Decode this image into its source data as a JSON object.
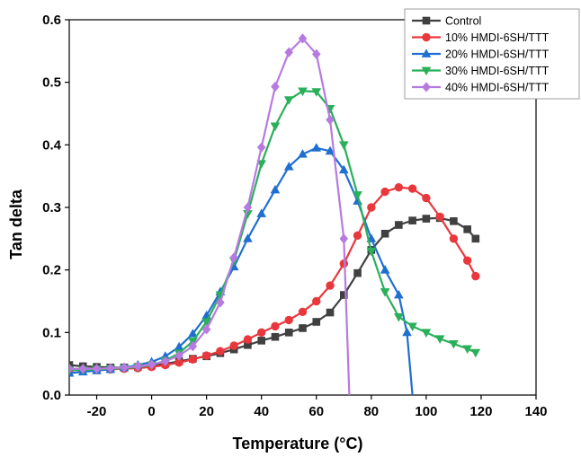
{
  "chart_data": {
    "type": "line",
    "xlabel": "Temperature (°C)",
    "ylabel": "Tan delta",
    "xlim": [
      -30,
      140
    ],
    "ylim": [
      0,
      0.6
    ],
    "xticks": [
      -20,
      0,
      20,
      40,
      60,
      80,
      100,
      120,
      140
    ],
    "yticks": [
      0.0,
      0.1,
      0.2,
      0.3,
      0.4,
      0.5,
      0.6
    ],
    "ytick_labels": [
      "0.0",
      "0.1",
      "0.2",
      "0.3",
      "0.4",
      "0.5",
      "0.6"
    ],
    "legend_position": "top-right",
    "grid": false,
    "series": [
      {
        "name": "Control",
        "color": "#404040",
        "marker": "square",
        "x": [
          -30,
          -25,
          -20,
          -15,
          -10,
          -5,
          0,
          5,
          10,
          15,
          20,
          25,
          30,
          35,
          40,
          45,
          50,
          55,
          60,
          65,
          70,
          75,
          80,
          85,
          90,
          95,
          100,
          105,
          110,
          115,
          118
        ],
        "y": [
          0.048,
          0.046,
          0.045,
          0.044,
          0.044,
          0.045,
          0.047,
          0.05,
          0.054,
          0.058,
          0.062,
          0.067,
          0.073,
          0.08,
          0.087,
          0.093,
          0.1,
          0.107,
          0.117,
          0.132,
          0.16,
          0.195,
          0.232,
          0.258,
          0.272,
          0.279,
          0.282,
          0.283,
          0.278,
          0.265,
          0.25
        ]
      },
      {
        "name": "10% HMDI-6SH/TTT",
        "color": "#e8383d",
        "marker": "circle",
        "x": [
          -30,
          -25,
          -20,
          -15,
          -10,
          -5,
          0,
          5,
          10,
          15,
          20,
          25,
          30,
          35,
          40,
          45,
          50,
          55,
          60,
          65,
          70,
          75,
          80,
          85,
          90,
          95,
          100,
          105,
          110,
          115,
          118
        ],
        "y": [
          0.04,
          0.04,
          0.04,
          0.041,
          0.042,
          0.043,
          0.045,
          0.048,
          0.052,
          0.057,
          0.063,
          0.07,
          0.079,
          0.089,
          0.1,
          0.11,
          0.12,
          0.133,
          0.15,
          0.175,
          0.21,
          0.255,
          0.3,
          0.325,
          0.332,
          0.33,
          0.315,
          0.285,
          0.25,
          0.215,
          0.19
        ]
      },
      {
        "name": "20% HMDI-6SH/TTT",
        "color": "#1f6fd1",
        "marker": "triangle-up",
        "x": [
          -30,
          -25,
          -20,
          -15,
          -10,
          -5,
          0,
          5,
          10,
          15,
          20,
          25,
          30,
          35,
          40,
          45,
          50,
          55,
          60,
          65,
          70,
          75,
          80,
          85,
          90,
          93,
          95
        ],
        "y": [
          0.035,
          0.037,
          0.039,
          0.041,
          0.044,
          0.048,
          0.053,
          0.062,
          0.077,
          0.098,
          0.127,
          0.165,
          0.205,
          0.25,
          0.29,
          0.328,
          0.365,
          0.385,
          0.395,
          0.39,
          0.36,
          0.31,
          0.25,
          0.2,
          0.16,
          0.1,
          0.0
        ]
      },
      {
        "name": "30% HMDI-6SH/TTT",
        "color": "#2aaf5a",
        "marker": "triangle-down",
        "x": [
          -30,
          -25,
          -20,
          -15,
          -10,
          -5,
          0,
          5,
          10,
          15,
          20,
          25,
          30,
          35,
          40,
          45,
          50,
          55,
          60,
          65,
          70,
          75,
          80,
          85,
          90,
          95,
          100,
          105,
          110,
          115,
          118
        ],
        "y": [
          0.04,
          0.04,
          0.041,
          0.042,
          0.043,
          0.045,
          0.048,
          0.055,
          0.067,
          0.086,
          0.117,
          0.16,
          0.215,
          0.29,
          0.37,
          0.43,
          0.472,
          0.486,
          0.485,
          0.458,
          0.4,
          0.32,
          0.23,
          0.165,
          0.125,
          0.11,
          0.1,
          0.09,
          0.082,
          0.074,
          0.068
        ]
      },
      {
        "name": "40% HMDI-6SH/TTT",
        "color": "#b77be0",
        "marker": "diamond",
        "x": [
          -30,
          -25,
          -20,
          -15,
          -10,
          -5,
          0,
          5,
          10,
          15,
          20,
          25,
          30,
          35,
          40,
          45,
          50,
          55,
          60,
          65,
          70,
          72
        ],
        "y": [
          0.042,
          0.042,
          0.042,
          0.043,
          0.044,
          0.046,
          0.049,
          0.054,
          0.063,
          0.078,
          0.105,
          0.148,
          0.22,
          0.3,
          0.396,
          0.493,
          0.548,
          0.57,
          0.545,
          0.44,
          0.25,
          0.0
        ]
      }
    ]
  }
}
